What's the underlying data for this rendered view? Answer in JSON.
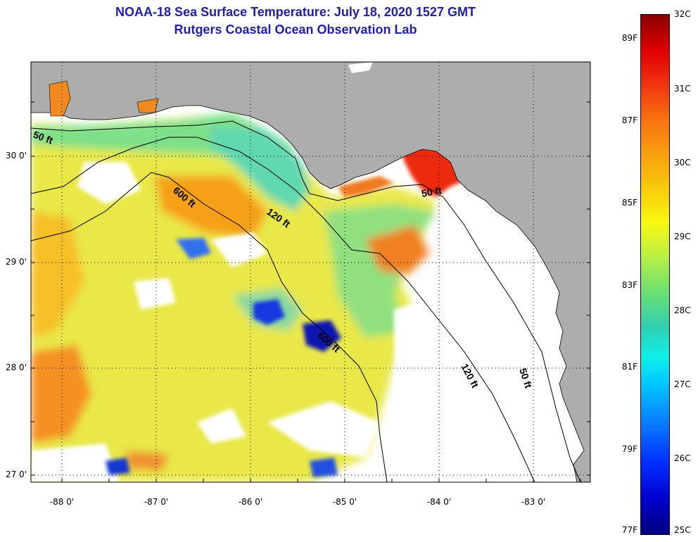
{
  "title": {
    "line1": "NOAA-18 Sea Surface Temperature:  July 18, 2020 1527 GMT",
    "line2": "Rutgers Coastal Ocean Observation Lab"
  },
  "map": {
    "latitude_labels": [
      "30 0'",
      "29 0'",
      "28 0'",
      "27 0'"
    ],
    "longitude_labels": [
      "-88 0'",
      "-87 0'",
      "-86 0'",
      "-85 0'",
      "-84 0'",
      "-83 0'"
    ],
    "depth_contours": [
      "50 ft",
      "600 ft",
      "120 ft",
      "50 ft",
      "600 ft",
      "120 ft",
      "50 ft"
    ],
    "colors": {
      "land": "#adadad",
      "no_data": "#ffffff",
      "grid": "#000000"
    }
  },
  "colorbar": {
    "fahrenheit_labels": [
      "89F",
      "87F",
      "85F",
      "83F",
      "81F",
      "79F",
      "77F"
    ],
    "celsius_labels": [
      "32C",
      "31C",
      "30C",
      "29C",
      "28C",
      "27C",
      "26C",
      "25C"
    ]
  }
}
